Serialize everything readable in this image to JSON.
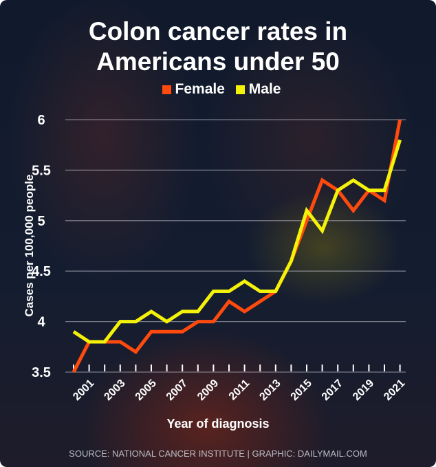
{
  "title_line1": "Colon cancer rates in",
  "title_line2": "Americans under 50",
  "source": "SOURCE: NATIONAL CANCER INSTITUTE  |  GRAPHIC: DAILYMAIL.COM",
  "chart_data": {
    "type": "line",
    "title": "Colon cancer rates in Americans under 50",
    "xlabel": "Year of diagnosis",
    "ylabel": "Cases per 100,000 people",
    "ylim": [
      3.5,
      6
    ],
    "yticks": [
      "3.5",
      "4",
      "4.5",
      "5",
      "5.5",
      "6"
    ],
    "x": [
      2000,
      2001,
      2002,
      2003,
      2004,
      2005,
      2006,
      2007,
      2008,
      2009,
      2010,
      2011,
      2012,
      2013,
      2014,
      2015,
      2016,
      2017,
      2018,
      2019,
      2020,
      2021
    ],
    "xticklabels": [
      "2001",
      "2003",
      "2005",
      "2007",
      "2009",
      "2011",
      "2013",
      "2015",
      "2017",
      "2019",
      "2021"
    ],
    "legend_placement": "top-center",
    "series": [
      {
        "name": "Female",
        "color": "#ff4a0e",
        "values": [
          3.5,
          3.8,
          3.8,
          3.8,
          3.7,
          3.9,
          3.9,
          3.9,
          4.0,
          4.0,
          4.2,
          4.1,
          4.2,
          4.3,
          4.6,
          5.0,
          5.4,
          5.3,
          5.1,
          5.3,
          5.2,
          6.0
        ]
      },
      {
        "name": "Male",
        "color": "#f5f20a",
        "values": [
          3.9,
          3.8,
          3.8,
          4.0,
          4.0,
          4.1,
          4.0,
          4.1,
          4.1,
          4.3,
          4.3,
          4.4,
          4.3,
          4.3,
          4.6,
          5.1,
          4.9,
          5.3,
          5.4,
          5.3,
          5.3,
          5.8
        ]
      }
    ]
  }
}
